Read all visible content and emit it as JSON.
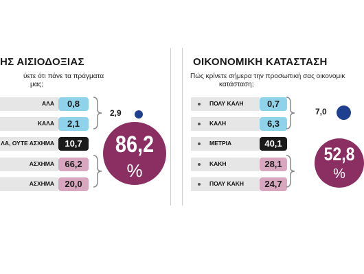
{
  "colors": {
    "blue_box": "#8fd3ea",
    "black_box": "#1a1a1a",
    "pink_box": "#d8a7bf",
    "circle": "#8b2f63",
    "dot_blue": "#1f3f8f",
    "label_bg": "#e6e6e6"
  },
  "chart_data": [
    {
      "type": "bar",
      "title": "ΗΣ ΑΙΣΙΟΔΟΞΙΑΣ",
      "subtitle_lines": [
        "ύετε ότι πάνε τα πράγματα",
        "μας;"
      ],
      "categories": [
        "ΑΛΑ",
        "ΚΑΛΑ",
        "ΛΑ, ΟΥΤΕ ΑΣΧΗΜΑ",
        "ΑΣΧΗΜΑ",
        "ΑΣΧΗΜΑ"
      ],
      "values": [
        "0,8",
        "2,1",
        "10,7",
        "66,2",
        "20,0"
      ],
      "value_colors": [
        "blue",
        "blue",
        "black",
        "pink",
        "pink"
      ],
      "positive_total": "2,9",
      "negative_total": "86,2",
      "negative_total_unit": "%"
    },
    {
      "type": "bar",
      "title": "ΟΙΚΟΝΟΜΙΚΗ ΚΑΤΑΣΤΑΣΗ",
      "subtitle_lines": [
        "Πώς κρίνετε σήμερα την προσωπική σας οικονομικ",
        "κατάσταση;"
      ],
      "categories": [
        "ΠΟΛΥ ΚΑΛΗ",
        "ΚΑΛΗ",
        "ΜΕΤΡΙΑ",
        "ΚΑΚΗ",
        "ΠΟΛΥ ΚΑΚΗ"
      ],
      "values": [
        "0,7",
        "6,3",
        "40,1",
        "28,1",
        "24,7"
      ],
      "value_colors": [
        "blue",
        "blue",
        "black",
        "pink",
        "pink"
      ],
      "positive_total": "7,0",
      "negative_total": "52,8",
      "negative_total_unit": "%"
    }
  ]
}
